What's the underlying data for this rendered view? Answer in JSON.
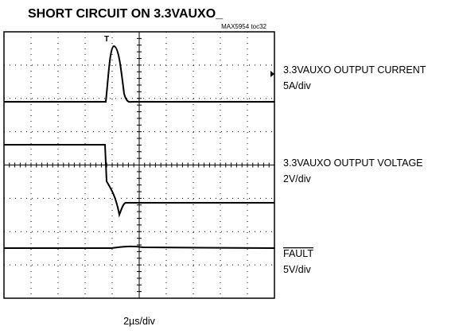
{
  "header": {
    "title": "SHORT CIRCUIT ON 3.3VAUXO_",
    "code": "MAX5954 toc32"
  },
  "traces": [
    {
      "label": "3.3VAUXO OUTPUT CURRENT",
      "scale": "5A/div"
    },
    {
      "label": "3.3VAUXO OUTPUT VOLTAGE",
      "scale": "2V/div"
    },
    {
      "label": "FAULT",
      "scale": "5V/div"
    }
  ],
  "timebase": "2µs/div"
}
